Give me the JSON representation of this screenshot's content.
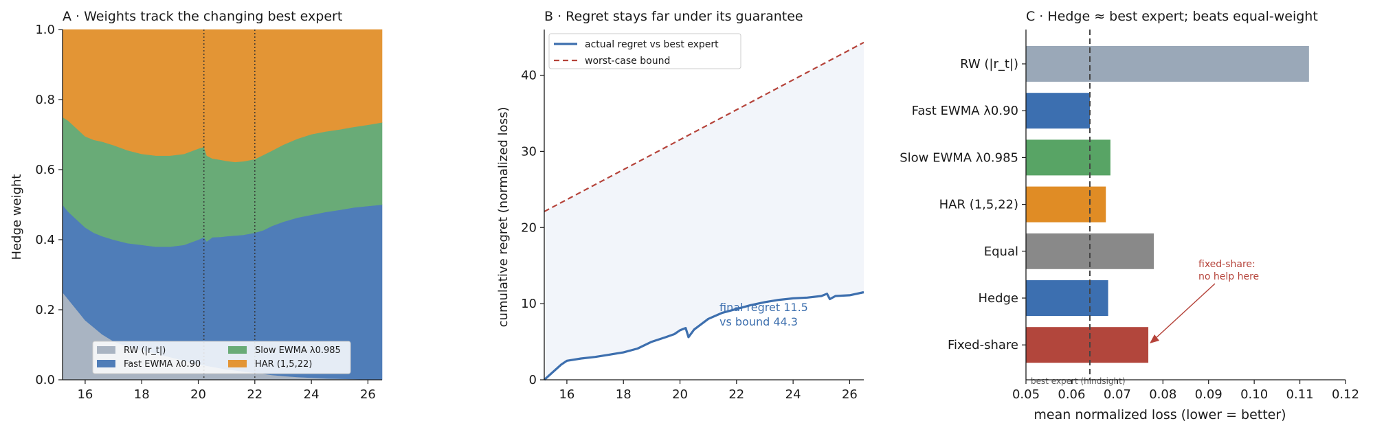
{
  "figure": {
    "background": "#ffffff",
    "text_color": "#1a1a1a"
  },
  "chart_data": [
    {
      "type": "area",
      "title": "A · Weights track the changing best expert",
      "xlabel": "",
      "ylabel": "Hedge weight",
      "xlim": [
        15.2,
        26.5
      ],
      "ylim": [
        0,
        1
      ],
      "xticks": [
        16,
        18,
        20,
        22,
        24,
        26
      ],
      "yticks": [
        0.0,
        0.2,
        0.4,
        0.6,
        0.8,
        1.0
      ],
      "ytick_labels": [
        "0.0",
        "0.2",
        "0.4",
        "0.6",
        "0.8",
        "1.0"
      ],
      "stacked": true,
      "vlines": [
        20.2,
        22.0
      ],
      "x": [
        15.2,
        15.4,
        15.6,
        15.8,
        16.0,
        16.3,
        16.6,
        17.0,
        17.5,
        18.0,
        18.5,
        19.0,
        19.5,
        20.0,
        20.2,
        20.3,
        20.5,
        20.8,
        21.0,
        21.3,
        21.6,
        22.0,
        22.3,
        22.6,
        23.0,
        23.5,
        24.0,
        24.5,
        25.0,
        25.5,
        26.0,
        26.5
      ],
      "series": [
        {
          "name": "RW (|r_t|)",
          "color": "#a9b4c2",
          "values": [
            0.25,
            0.23,
            0.21,
            0.19,
            0.17,
            0.15,
            0.13,
            0.11,
            0.095,
            0.085,
            0.075,
            0.065,
            0.055,
            0.045,
            0.042,
            0.04,
            0.037,
            0.033,
            0.03,
            0.027,
            0.024,
            0.02,
            0.017,
            0.014,
            0.011,
            0.008,
            0.006,
            0.004,
            0.003,
            0.002,
            0.001,
            0.0
          ]
        },
        {
          "name": "Fast EWMA λ0.90",
          "color": "#4f7db8",
          "values": [
            0.25,
            0.25,
            0.255,
            0.26,
            0.265,
            0.27,
            0.28,
            0.29,
            0.295,
            0.3,
            0.305,
            0.315,
            0.33,
            0.355,
            0.365,
            0.355,
            0.37,
            0.375,
            0.38,
            0.385,
            0.39,
            0.4,
            0.41,
            0.425,
            0.44,
            0.455,
            0.465,
            0.475,
            0.482,
            0.49,
            0.495,
            0.5
          ]
        },
        {
          "name": "Slow EWMA λ0.985",
          "color": "#69ab77",
          "values": [
            0.25,
            0.26,
            0.26,
            0.26,
            0.26,
            0.265,
            0.27,
            0.27,
            0.265,
            0.26,
            0.26,
            0.26,
            0.26,
            0.26,
            0.258,
            0.245,
            0.225,
            0.22,
            0.215,
            0.21,
            0.21,
            0.21,
            0.215,
            0.215,
            0.22,
            0.225,
            0.23,
            0.23,
            0.23,
            0.23,
            0.232,
            0.235
          ]
        },
        {
          "name": "HAR (1,5,22)",
          "color": "#e39535",
          "values": [
            0.25,
            0.26,
            0.275,
            0.29,
            0.305,
            0.315,
            0.32,
            0.33,
            0.345,
            0.355,
            0.36,
            0.36,
            0.355,
            0.34,
            0.335,
            0.36,
            0.368,
            0.372,
            0.375,
            0.378,
            0.376,
            0.37,
            0.358,
            0.346,
            0.329,
            0.312,
            0.299,
            0.291,
            0.285,
            0.278,
            0.272,
            0.265
          ]
        }
      ],
      "legend": {
        "placement": "lower-right",
        "columns": 2
      }
    },
    {
      "type": "line",
      "title": "B · Regret stays far under its guarantee",
      "xlabel": "",
      "ylabel": "cumulative regret (normalized loss)",
      "xlim": [
        15.2,
        26.5
      ],
      "ylim": [
        0,
        46
      ],
      "xticks": [
        16,
        18,
        20,
        22,
        24,
        26
      ],
      "yticks": [
        0,
        10,
        20,
        30,
        40
      ],
      "series": [
        {
          "name": "actual regret vs best expert",
          "color": "#3d6fae",
          "style": "solid",
          "x": [
            15.2,
            15.5,
            15.8,
            16.0,
            16.5,
            17.0,
            17.5,
            18.0,
            18.5,
            19.0,
            19.5,
            19.8,
            20.0,
            20.2,
            20.3,
            20.5,
            21.0,
            21.5,
            22.0,
            22.5,
            23.0,
            23.5,
            24.0,
            24.5,
            25.0,
            25.2,
            25.3,
            25.5,
            26.0,
            26.5
          ],
          "y": [
            0.0,
            1.0,
            2.0,
            2.5,
            2.8,
            3.0,
            3.3,
            3.6,
            4.1,
            5.0,
            5.6,
            6.0,
            6.5,
            6.8,
            5.6,
            6.6,
            8.0,
            8.8,
            9.3,
            9.8,
            10.2,
            10.5,
            10.7,
            10.8,
            11.0,
            11.3,
            10.6,
            11.0,
            11.1,
            11.5
          ]
        },
        {
          "name": "worst-case bound",
          "color": "#b5433a",
          "style": "dashed",
          "x": [
            15.2,
            26.5
          ],
          "y": [
            22.1,
            44.3
          ]
        }
      ],
      "annotation": {
        "lines": [
          "final regret 11.5",
          "vs bound 44.3"
        ],
        "x": 21.5,
        "y": 9.4,
        "color": "#3d6fae"
      },
      "legend": {
        "placement": "top-left"
      }
    },
    {
      "type": "bar",
      "orientation": "horizontal",
      "title": "C · Hedge ≈ best expert; beats equal-weight",
      "xlabel": "mean normalized loss (lower = better)",
      "ylabel": "",
      "xlim": [
        0.05,
        0.12
      ],
      "xticks": [
        0.05,
        0.06,
        0.07,
        0.08,
        0.09,
        0.1,
        0.11,
        0.12
      ],
      "xtick_labels": [
        "0.05",
        "0.06",
        "0.07",
        "0.08",
        "0.09",
        "0.10",
        "0.11",
        "0.12"
      ],
      "categories": [
        "RW (|r_t|)",
        "Fast EWMA λ0.90",
        "Slow EWMA λ0.985",
        "HAR (1,5,22)",
        "Equal",
        "Hedge",
        "Fixed-share"
      ],
      "values": [
        0.112,
        0.064,
        0.0685,
        0.0675,
        0.078,
        0.068,
        0.0768
      ],
      "colors": [
        "#9aa8b8",
        "#3c6fb0",
        "#58a465",
        "#e08c25",
        "#898989",
        "#3c6fb0",
        "#b2463c"
      ],
      "reference_line": {
        "x": 0.064,
        "label": "best expert (hindsight)"
      },
      "annotation": {
        "lines": [
          "fixed-share:",
          "no help here"
        ],
        "color": "#b5433a"
      }
    }
  ]
}
